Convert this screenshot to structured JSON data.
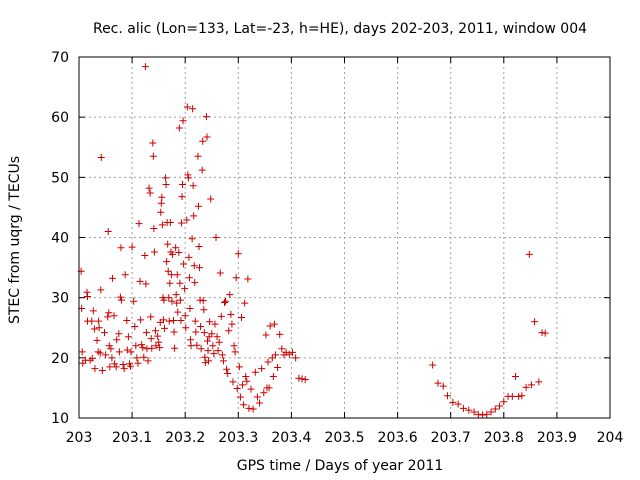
{
  "chart_data": {
    "type": "scatter",
    "title": "Rec. alic (Lon=133, Lat=-23, h=HE), days 202-203, 2011, window 004",
    "xlabel": "GPS time / Days of year 2011",
    "ylabel": "STEC from uqrg / TECUs",
    "xlim": [
      203,
      204
    ],
    "ylim": [
      10,
      70
    ],
    "xticks": [
      203,
      203.1,
      203.2,
      203.3,
      203.4,
      203.5,
      203.6,
      203.7,
      203.8,
      203.9,
      204
    ],
    "xtick_labels": [
      "203",
      "203.1",
      "203.2",
      "203.3",
      "203.4",
      "203.5",
      "203.6",
      "203.7",
      "203.8",
      "203.9",
      "204"
    ],
    "yticks": [
      10,
      20,
      30,
      40,
      50,
      60,
      70
    ],
    "ytick_labels": [
      "10",
      "20",
      "30",
      "40",
      "50",
      "60",
      "70"
    ],
    "grid": true,
    "marker": "plus",
    "color": "#cc0000",
    "series": [
      {
        "points": [
          [
            203.004,
            34.4
          ],
          [
            203.005,
            28.2
          ],
          [
            203.006,
            21.0
          ],
          [
            203.007,
            19.1
          ],
          [
            203.012,
            19.6
          ],
          [
            203.015,
            30.9
          ],
          [
            203.016,
            30.2
          ],
          [
            203.016,
            26.1
          ],
          [
            203.021,
            19.6
          ],
          [
            203.024,
            26.1
          ],
          [
            203.025,
            19.9
          ],
          [
            203.027,
            27.8
          ],
          [
            203.029,
            24.8
          ],
          [
            203.03,
            18.2
          ],
          [
            203.034,
            22.9
          ],
          [
            203.036,
            21.0
          ],
          [
            203.037,
            26.1
          ],
          [
            203.038,
            25.0
          ],
          [
            203.04,
            20.8
          ],
          [
            203.041,
            31.3
          ],
          [
            203.042,
            53.3
          ],
          [
            203.044,
            17.9
          ],
          [
            203.048,
            24.2
          ],
          [
            203.05,
            20.5
          ],
          [
            203.054,
            26.8
          ],
          [
            203.055,
            41.0
          ],
          [
            203.056,
            27.5
          ],
          [
            203.057,
            22.0
          ],
          [
            203.058,
            18.5
          ],
          [
            203.06,
            21.5
          ],
          [
            203.062,
            20.0
          ],
          [
            203.063,
            33.2
          ],
          [
            203.066,
            27.0
          ],
          [
            203.067,
            19.0
          ],
          [
            203.07,
            18.5
          ],
          [
            203.071,
            23.0
          ],
          [
            203.075,
            24.0
          ],
          [
            203.076,
            21.0
          ],
          [
            203.078,
            30.1
          ],
          [
            203.079,
            38.3
          ],
          [
            203.08,
            29.6
          ],
          [
            203.083,
            18.9
          ],
          [
            203.085,
            18.2
          ],
          [
            203.087,
            33.8
          ],
          [
            203.09,
            26.2
          ],
          [
            203.091,
            21.3
          ],
          [
            203.093,
            23.5
          ],
          [
            203.095,
            19.0
          ],
          [
            203.097,
            18.6
          ],
          [
            203.098,
            21.0
          ],
          [
            203.1,
            38.4
          ],
          [
            203.103,
            29.4
          ],
          [
            203.105,
            25.2
          ],
          [
            203.107,
            22.0
          ],
          [
            203.109,
            20.0
          ],
          [
            203.111,
            19.1
          ],
          [
            203.113,
            42.3
          ],
          [
            203.115,
            32.7
          ],
          [
            203.116,
            26.3
          ],
          [
            203.118,
            22.2
          ],
          [
            203.12,
            21.7
          ],
          [
            203.122,
            20.1
          ],
          [
            203.124,
            37.0
          ],
          [
            203.125,
            68.4
          ],
          [
            203.126,
            32.3
          ],
          [
            203.127,
            24.2
          ],
          [
            203.128,
            21.5
          ],
          [
            203.13,
            19.5
          ],
          [
            203.132,
            48.2
          ],
          [
            203.134,
            47.4
          ],
          [
            203.135,
            26.8
          ],
          [
            203.136,
            23.2
          ],
          [
            203.137,
            21.6
          ],
          [
            203.139,
            55.7
          ],
          [
            203.14,
            53.5
          ],
          [
            203.141,
            41.5
          ],
          [
            203.142,
            37.6
          ],
          [
            203.144,
            24.5
          ],
          [
            203.145,
            22.0
          ],
          [
            203.148,
            23.6
          ],
          [
            203.15,
            22.6
          ],
          [
            203.152,
            21.7
          ],
          [
            203.153,
            25.9
          ],
          [
            203.154,
            44.2
          ],
          [
            203.155,
            45.7
          ],
          [
            203.156,
            46.7
          ],
          [
            203.157,
            42.1
          ],
          [
            203.158,
            30.0
          ],
          [
            203.159,
            26.3
          ],
          [
            203.16,
            29.6
          ],
          [
            203.161,
            24.9
          ],
          [
            203.163,
            49.9
          ],
          [
            203.164,
            48.8
          ],
          [
            203.165,
            36.0
          ],
          [
            203.166,
            42.5
          ],
          [
            203.167,
            38.9
          ],
          [
            203.168,
            34.4
          ],
          [
            203.169,
            30.0
          ],
          [
            203.17,
            26.1
          ],
          [
            203.171,
            32.4
          ],
          [
            203.172,
            42.5
          ],
          [
            203.173,
            37.6
          ],
          [
            203.174,
            33.8
          ],
          [
            203.175,
            29.4
          ],
          [
            203.176,
            37.2
          ],
          [
            203.178,
            26.2
          ],
          [
            203.179,
            24.3
          ],
          [
            203.18,
            21.6
          ],
          [
            203.182,
            38.3
          ],
          [
            203.183,
            30.5
          ],
          [
            203.184,
            29.1
          ],
          [
            203.185,
            33.8
          ],
          [
            203.186,
            27.6
          ],
          [
            203.188,
            37.5
          ],
          [
            203.189,
            58.2
          ],
          [
            203.19,
            32.4
          ],
          [
            203.191,
            29.6
          ],
          [
            203.192,
            26.2
          ],
          [
            203.193,
            42.4
          ],
          [
            203.194,
            46.8
          ],
          [
            203.195,
            48.8
          ],
          [
            203.196,
            59.4
          ],
          [
            203.197,
            35.6
          ],
          [
            203.199,
            31.5
          ],
          [
            203.2,
            27.0
          ],
          [
            203.201,
            25.0
          ],
          [
            203.203,
            42.9
          ],
          [
            203.204,
            61.7
          ],
          [
            203.205,
            50.4
          ],
          [
            203.206,
            49.9
          ],
          [
            203.207,
            36.7
          ],
          [
            203.208,
            33.3
          ],
          [
            203.209,
            28.2
          ],
          [
            203.21,
            23.0
          ],
          [
            203.211,
            22.0
          ],
          [
            203.213,
            39.8
          ],
          [
            203.214,
            61.4
          ],
          [
            203.215,
            48.6
          ],
          [
            203.216,
            43.6
          ],
          [
            203.217,
            35.3
          ],
          [
            203.218,
            32.5
          ],
          [
            203.219,
            26.1
          ],
          [
            203.22,
            24.3
          ],
          [
            203.222,
            22.1
          ],
          [
            203.224,
            53.5
          ],
          [
            203.225,
            45.2
          ],
          [
            203.226,
            38.5
          ],
          [
            203.227,
            35.0
          ],
          [
            203.228,
            29.6
          ],
          [
            203.229,
            25.2
          ],
          [
            203.23,
            21.5
          ],
          [
            203.232,
            51.2
          ],
          [
            203.233,
            56.0
          ],
          [
            203.234,
            29.5
          ],
          [
            203.235,
            28.0
          ],
          [
            203.236,
            24.2
          ],
          [
            203.237,
            20.1
          ],
          [
            203.238,
            19.2
          ],
          [
            203.24,
            60.1
          ],
          [
            203.241,
            56.7
          ],
          [
            203.242,
            22.8
          ],
          [
            203.243,
            21.2
          ],
          [
            203.244,
            19.5
          ],
          [
            203.245,
            23.5
          ],
          [
            203.246,
            26.0
          ],
          [
            203.248,
            46.4
          ],
          [
            203.25,
            24.0
          ],
          [
            203.252,
            22.0
          ],
          [
            203.254,
            20.7
          ],
          [
            203.256,
            25.6
          ],
          [
            203.258,
            40.0
          ],
          [
            203.26,
            23.5
          ],
          [
            203.262,
            21.2
          ],
          [
            203.264,
            22.6
          ],
          [
            203.266,
            34.1
          ],
          [
            203.268,
            26.9
          ],
          [
            203.27,
            20.5
          ],
          [
            203.272,
            19.5
          ],
          [
            203.274,
            29.2
          ],
          [
            203.276,
            29.4
          ],
          [
            203.278,
            18.1
          ],
          [
            203.28,
            17.4
          ],
          [
            203.282,
            24.5
          ],
          [
            203.284,
            30.5
          ],
          [
            203.286,
            27.2
          ],
          [
            203.288,
            25.6
          ],
          [
            203.29,
            16.0
          ],
          [
            203.292,
            22.0
          ],
          [
            203.294,
            21.0
          ],
          [
            203.296,
            33.3
          ],
          [
            203.298,
            14.9
          ],
          [
            203.3,
            37.3
          ],
          [
            203.302,
            18.5
          ],
          [
            203.304,
            13.5
          ],
          [
            203.306,
            26.7
          ],
          [
            203.308,
            15.5
          ],
          [
            203.31,
            12.2
          ],
          [
            203.312,
            29.1
          ],
          [
            203.314,
            16.9
          ],
          [
            203.316,
            16.1
          ],
          [
            203.318,
            33.1
          ],
          [
            203.32,
            11.6
          ],
          [
            203.324,
            14.8
          ],
          [
            203.328,
            11.5
          ],
          [
            203.332,
            17.6
          ],
          [
            203.336,
            13.5
          ],
          [
            203.34,
            12.5
          ],
          [
            203.344,
            18.2
          ],
          [
            203.348,
            14.2
          ],
          [
            203.352,
            23.8
          ],
          [
            203.354,
            15.0
          ],
          [
            203.356,
            19.3
          ],
          [
            203.358,
            15.0
          ],
          [
            203.36,
            25.3
          ],
          [
            203.364,
            20.0
          ],
          [
            203.366,
            16.9
          ],
          [
            203.368,
            25.6
          ],
          [
            203.37,
            20.5
          ],
          [
            203.374,
            18.4
          ],
          [
            203.378,
            23.9
          ],
          [
            203.382,
            21.5
          ],
          [
            203.386,
            20.5
          ],
          [
            203.39,
            20.9
          ],
          [
            203.396,
            20.6
          ],
          [
            203.402,
            20.9
          ],
          [
            203.408,
            20.0
          ],
          [
            203.414,
            16.6
          ],
          [
            203.42,
            16.5
          ],
          [
            203.426,
            16.4
          ],
          [
            203.666,
            18.8
          ],
          [
            203.676,
            15.8
          ],
          [
            203.686,
            15.3
          ],
          [
            203.694,
            13.7
          ],
          [
            203.704,
            12.6
          ],
          [
            203.714,
            12.3
          ],
          [
            203.724,
            11.6
          ],
          [
            203.734,
            11.3
          ],
          [
            203.744,
            11.0
          ],
          [
            203.752,
            10.6
          ],
          [
            203.76,
            10.5
          ],
          [
            203.768,
            10.6
          ],
          [
            203.776,
            11.0
          ],
          [
            203.784,
            11.5
          ],
          [
            203.792,
            12.0
          ],
          [
            203.8,
            12.7
          ],
          [
            203.808,
            13.6
          ],
          [
            203.816,
            13.6
          ],
          [
            203.822,
            16.9
          ],
          [
            203.828,
            13.6
          ],
          [
            203.834,
            13.7
          ],
          [
            203.842,
            15.1
          ],
          [
            203.848,
            37.2
          ],
          [
            203.852,
            15.5
          ],
          [
            203.858,
            26.0
          ],
          [
            203.866,
            16.0
          ],
          [
            203.872,
            24.2
          ],
          [
            203.878,
            24.1
          ]
        ]
      }
    ]
  }
}
